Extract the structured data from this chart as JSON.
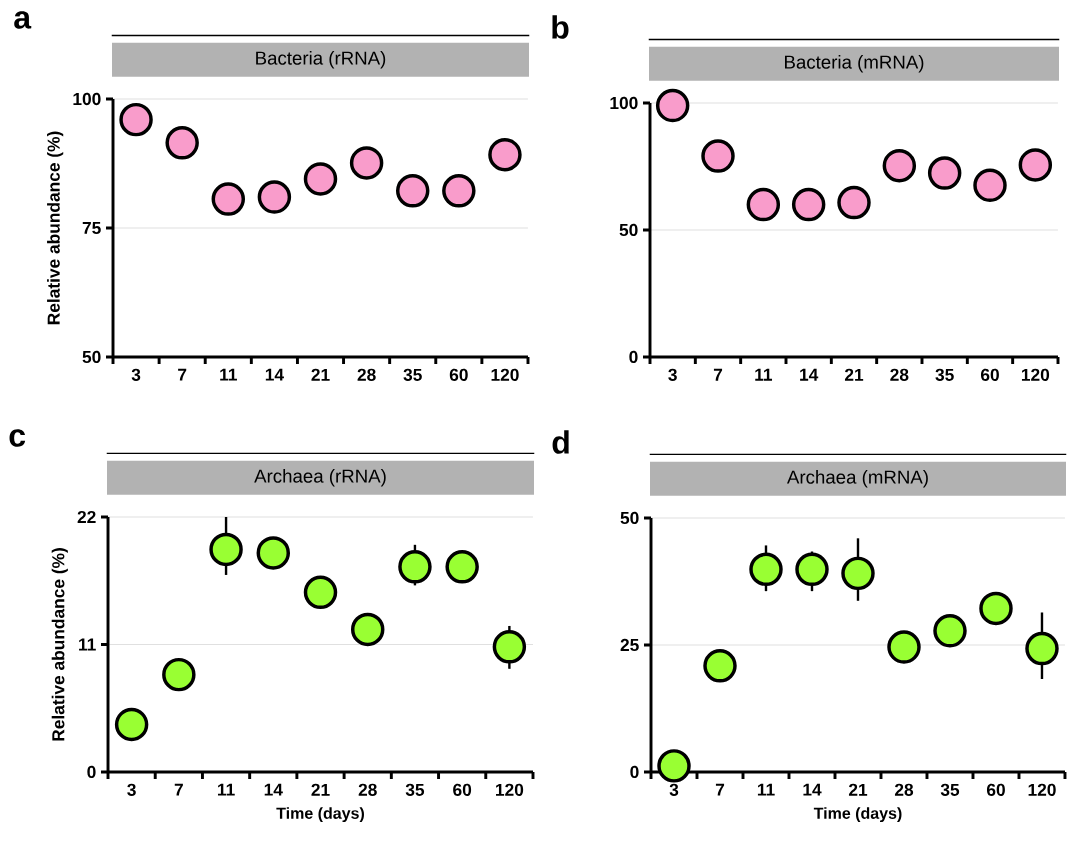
{
  "chart_data": [
    {
      "type": "scatter",
      "title": "Bacteria (rRNA)",
      "ylabel": "Relative abundance (%)",
      "annotations": [
        "a"
      ],
      "categories": [
        "3",
        "7",
        "11",
        "14",
        "21",
        "28",
        "35",
        "60",
        "120"
      ],
      "values": [
        96.0,
        91.5,
        80.6,
        81.0,
        84.5,
        87.6,
        82.2,
        82.2,
        89.2
      ],
      "color": "#f99ccb",
      "marker": "circle",
      "ylim": [
        50,
        100
      ],
      "yticks": [
        50,
        75,
        100
      ],
      "grid": "y"
    },
    {
      "type": "scatter",
      "title": "Bacteria (mRNA)",
      "annotations": [
        "b"
      ],
      "categories": [
        "3",
        "7",
        "11",
        "14",
        "21",
        "28",
        "35",
        "60",
        "120"
      ],
      "values": [
        99,
        79.1,
        60.0,
        60.0,
        60.8,
        75.3,
        72.4,
        67.6,
        75.6
      ],
      "color": "#f99ccb",
      "marker": "circle",
      "ylim": [
        0,
        100
      ],
      "yticks": [
        0,
        50,
        100
      ],
      "grid": "y"
    },
    {
      "type": "scatter",
      "title": "Archaea (rRNA)",
      "ylabel": "Relative abundance (%)",
      "xlabel": "Time (days)",
      "annotations": [
        "c"
      ],
      "categories": [
        "3",
        "7",
        "11",
        "14",
        "21",
        "28",
        "35",
        "60",
        "120"
      ],
      "values": [
        4.1,
        8.4,
        19.2,
        18.9,
        15.5,
        12.3,
        17.7,
        17.7,
        10.8
      ],
      "errors": [
        null,
        null,
        [
          17.0,
          22.0
        ],
        null,
        null,
        null,
        [
          16.1,
          19.6
        ],
        null,
        [
          8.9,
          12.6
        ]
      ],
      "color": "#99ff33",
      "marker": "circle",
      "ylim": [
        0,
        22
      ],
      "yticks": [
        0,
        11,
        22
      ],
      "grid": "y"
    },
    {
      "type": "scatter",
      "title": "Archaea (mRNA)",
      "xlabel": "Time (days)",
      "annotations": [
        "d"
      ],
      "categories": [
        "3",
        "7",
        "11",
        "14",
        "21",
        "28",
        "35",
        "60",
        "120"
      ],
      "values": [
        1.2,
        20.9,
        39.9,
        39.9,
        39.1,
        24.6,
        27.8,
        32.2,
        24.3
      ],
      "errors": [
        null,
        null,
        [
          35.6,
          44.6
        ],
        [
          35.6,
          43.4
        ],
        [
          33.7,
          46.0
        ],
        null,
        null,
        null,
        [
          18.3,
          31.4
        ]
      ],
      "color": "#99ff33",
      "marker": "circle",
      "ylim": [
        0,
        50
      ],
      "yticks": [
        0,
        25,
        50
      ],
      "grid": "y"
    }
  ]
}
